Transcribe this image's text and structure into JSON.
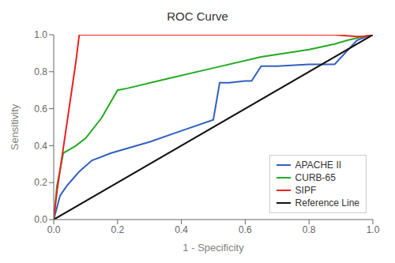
{
  "chart_data": {
    "type": "line",
    "title": "ROC Curve",
    "xlabel": "1 - Specificity",
    "ylabel": "Sensitivity",
    "xlim": [
      0.0,
      1.0
    ],
    "ylim": [
      0.0,
      1.0
    ],
    "xticks": [
      {
        "value": 0.0,
        "label": "0.0"
      },
      0.2,
      0.4,
      0.6,
      0.8,
      {
        "value": 1.0,
        "label": "1.0"
      }
    ],
    "yticks": [
      {
        "value": 0.0,
        "label": "0.0"
      },
      0.2,
      0.4,
      0.6,
      0.8,
      {
        "value": 1.0,
        "label": "1.0"
      }
    ],
    "grid": false,
    "legend": "lower right",
    "series": [
      {
        "name": "APACHE II",
        "color": "#3060c0",
        "x": [
          0.0,
          0.02,
          0.04,
          0.06,
          0.08,
          0.12,
          0.18,
          0.3,
          0.4,
          0.5,
          0.52,
          0.55,
          0.6,
          0.62,
          0.65,
          0.7,
          0.8,
          0.88,
          0.95,
          0.98,
          1.0
        ],
        "values": [
          0.0,
          0.13,
          0.18,
          0.22,
          0.26,
          0.32,
          0.36,
          0.42,
          0.48,
          0.54,
          0.74,
          0.74,
          0.75,
          0.75,
          0.83,
          0.83,
          0.84,
          0.84,
          0.97,
          0.99,
          1.0
        ]
      },
      {
        "name": "CURB-65",
        "color": "#22aa22",
        "x": [
          0.0,
          0.01,
          0.03,
          0.05,
          0.07,
          0.1,
          0.15,
          0.2,
          0.23,
          0.35,
          0.5,
          0.65,
          0.8,
          0.88,
          0.92,
          0.97,
          1.0
        ],
        "values": [
          0.0,
          0.18,
          0.36,
          0.38,
          0.4,
          0.44,
          0.55,
          0.7,
          0.71,
          0.76,
          0.82,
          0.88,
          0.92,
          0.95,
          0.97,
          0.99,
          1.0
        ]
      },
      {
        "name": "SIPF",
        "color": "#ee2020",
        "x": [
          0.0,
          0.01,
          0.07,
          0.08,
          0.1,
          0.5,
          0.8,
          0.88,
          0.95,
          0.97,
          1.0
        ],
        "values": [
          0.0,
          0.15,
          0.86,
          1.0,
          1.0,
          1.0,
          1.0,
          1.0,
          0.99,
          0.99,
          1.0
        ]
      },
      {
        "name": "Reference Line",
        "color": "#111111",
        "x": [
          0.0,
          1.0
        ],
        "values": [
          0.0,
          1.0
        ]
      }
    ]
  }
}
